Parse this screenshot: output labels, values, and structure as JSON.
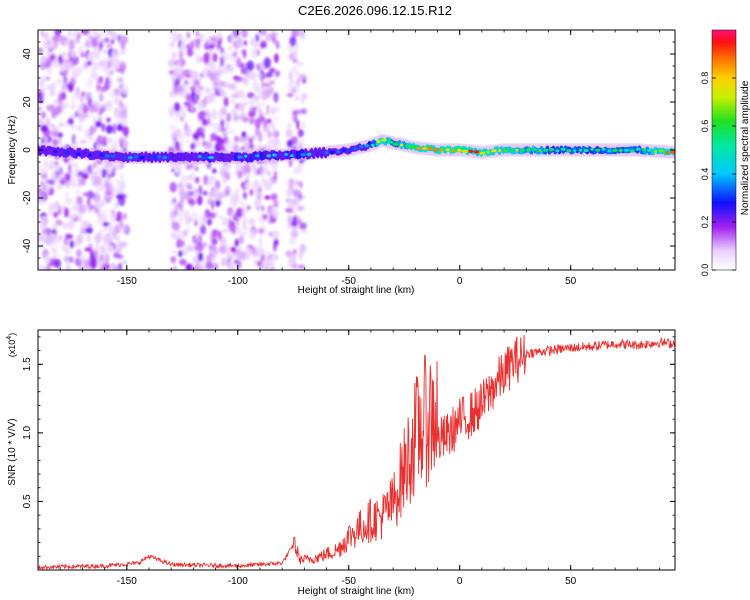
{
  "title": "C2E6.2026.096.12.15.R12",
  "chart_data": [
    {
      "type": "heatmap",
      "xlabel": "Height of straight line (km)",
      "ylabel": "Frequency (Hz)",
      "xlim": [
        -190,
        97
      ],
      "ylim": [
        -50,
        50
      ],
      "x_ticks": [
        -150,
        -100,
        -50,
        0,
        50
      ],
      "y_ticks": [
        -40,
        -20,
        0,
        20,
        40
      ],
      "colorbar": {
        "label": "Normalized spectral amplitude",
        "ticks": [
          "0.0",
          "0.2",
          "0.4",
          "0.6",
          "0.8"
        ],
        "range": [
          0,
          1
        ]
      },
      "ridge": {
        "description_points_x": [
          -190,
          -150,
          -100,
          -75,
          -60,
          -50,
          -40,
          -35,
          -30,
          -25,
          -20,
          -10,
          0,
          10,
          20,
          40,
          60,
          80,
          97
        ],
        "frequency_hz": [
          0,
          -3,
          -3,
          -2,
          -1,
          0,
          2,
          4,
          3,
          2,
          1,
          0,
          0,
          -1,
          0,
          0,
          0,
          0,
          -1
        ],
        "peak_amplitude": [
          0.25,
          0.35,
          0.4,
          0.45,
          0.35,
          0.35,
          0.45,
          0.9,
          0.6,
          0.7,
          0.85,
          0.9,
          0.95,
          0.85,
          0.8,
          0.6,
          0.55,
          0.6,
          0.9
        ]
      },
      "noise_band_regions_x": [
        [
          -190,
          -150
        ],
        [
          -130,
          -82
        ],
        [
          -77,
          -70
        ]
      ]
    },
    {
      "type": "line",
      "xlabel": "Height of straight line (km)",
      "ylabel": "SNR (10 * V/V)",
      "y_multiplier_label": "(x10",
      "y_multiplier_exp": "4",
      "y_multiplier_close": ")",
      "xlim": [
        -190,
        97
      ],
      "ylim": [
        0,
        1.75
      ],
      "x_ticks": [
        -150,
        -100,
        -50,
        0,
        50
      ],
      "y_ticks": [
        "0.5",
        "1.0",
        "1.5"
      ],
      "series": [
        {
          "color": "#e83030",
          "x": [
            -190,
            -160,
            -145,
            -140,
            -130,
            -100,
            -80,
            -75,
            -72,
            -65,
            -55,
            -50,
            -45,
            -40,
            -35,
            -30,
            -25,
            -20,
            -15,
            -10,
            -5,
            0,
            5,
            10,
            15,
            20,
            25,
            30,
            40,
            50,
            60,
            70,
            80,
            90,
            97
          ],
          "y": [
            0.02,
            0.03,
            0.05,
            0.1,
            0.04,
            0.03,
            0.05,
            0.18,
            0.06,
            0.07,
            0.12,
            0.2,
            0.25,
            0.3,
            0.32,
            0.4,
            0.6,
            0.8,
            0.9,
            0.95,
            1.0,
            1.1,
            1.15,
            1.22,
            1.35,
            1.45,
            1.55,
            1.58,
            1.6,
            1.62,
            1.63,
            1.65,
            1.64,
            1.66,
            1.65
          ]
        }
      ]
    }
  ]
}
